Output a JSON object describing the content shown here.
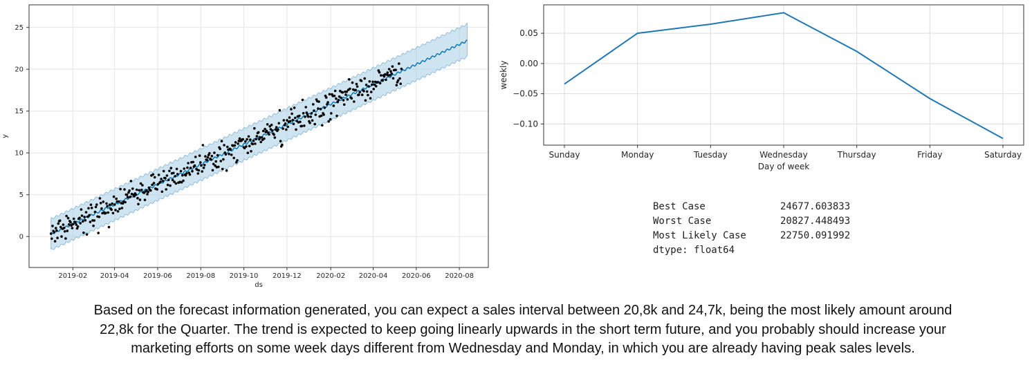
{
  "chart_data": [
    {
      "type": "line",
      "subtype": "forecast-with-uncertainty",
      "xlabel": "ds",
      "ylabel": "y",
      "x_ticks": [
        "2019-02",
        "2019-04",
        "2019-06",
        "2019-08",
        "2019-10",
        "2019-12",
        "2020-02",
        "2020-04",
        "2020-06",
        "2020-08"
      ],
      "y_ticks": [
        0,
        5,
        10,
        15,
        20,
        25
      ],
      "xlim": [
        "2018-12-01",
        "2020-09-11"
      ],
      "ylim": [
        -3.7,
        27.7
      ],
      "grid": true,
      "series": [
        {
          "role": "forecast",
          "x": [
            "2019-01-01",
            "2020-08-12"
          ],
          "y": [
            0.3,
            23.4
          ]
        },
        {
          "role": "upper",
          "x": [
            "2019-01-01",
            "2020-08-12"
          ],
          "y": [
            2.1,
            25.4
          ]
        },
        {
          "role": "lower",
          "x": [
            "2019-01-01",
            "2020-08-12"
          ],
          "y": [
            -1.6,
            21.5
          ]
        },
        {
          "role": "observed",
          "x_range": [
            "2019-01-01",
            "2020-05-11"
          ],
          "approx_points": 430
        }
      ],
      "colors": {
        "forecast": "#0072B2",
        "band": "#a6cee3",
        "points": "#000000"
      }
    },
    {
      "type": "line",
      "xlabel": "Day of week",
      "ylabel": "weekly",
      "categories": [
        "Sunday",
        "Monday",
        "Tuesday",
        "Wednesday",
        "Thursday",
        "Friday",
        "Saturday"
      ],
      "values": [
        -0.034,
        0.05,
        0.065,
        0.084,
        0.02,
        -0.058,
        -0.124
      ],
      "y_ticks": [
        "0.05",
        "0.00",
        "−0.05",
        "−0.10"
      ],
      "ylim": [
        -0.135,
        0.097
      ],
      "grid": true,
      "colors": {
        "line": "#1f77b4"
      }
    }
  ],
  "summary": {
    "rows": [
      {
        "label": "Best Case",
        "value": "24677.603833"
      },
      {
        "label": "Worst Case",
        "value": "20827.448493"
      },
      {
        "label": "Most Likely Case",
        "value": "22750.091992"
      }
    ],
    "dtype": "dtype: float64"
  },
  "caption": {
    "lines": [
      "Based on the forecast information generated, you can expect a sales interval between 20,8k and 24,7k, being the most likely amount around",
      "22,8k for the Quarter. The trend is expected to keep going linearly upwards in the short term future, and you probably should increase your",
      "marketing efforts on some week days different from Wednesday and Monday, in which you are already having peak sales levels."
    ]
  }
}
